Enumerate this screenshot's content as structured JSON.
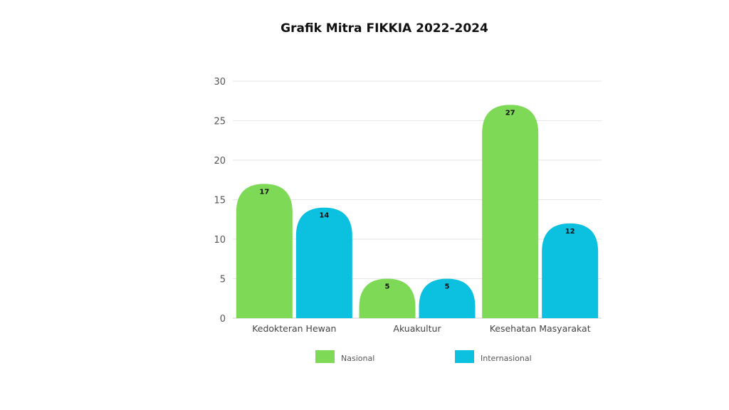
{
  "chart_data": {
    "type": "bar",
    "title": "Grafik Mitra FIKKIA 2022-2024",
    "categories": [
      "Kedokteran Hewan",
      "Akuakultur",
      "Kesehatan Masyarakat"
    ],
    "series": [
      {
        "name": "Nasional",
        "values": [
          17,
          5,
          27
        ],
        "color": "#7ed957"
      },
      {
        "name": "Internasional",
        "values": [
          14,
          5,
          12
        ],
        "color": "#0cc0df"
      }
    ],
    "ylim": [
      0,
      30
    ],
    "yticks": [
      0,
      5,
      10,
      15,
      20,
      25,
      30
    ],
    "grid": true,
    "legend": "bottom",
    "data_labels": true
  }
}
